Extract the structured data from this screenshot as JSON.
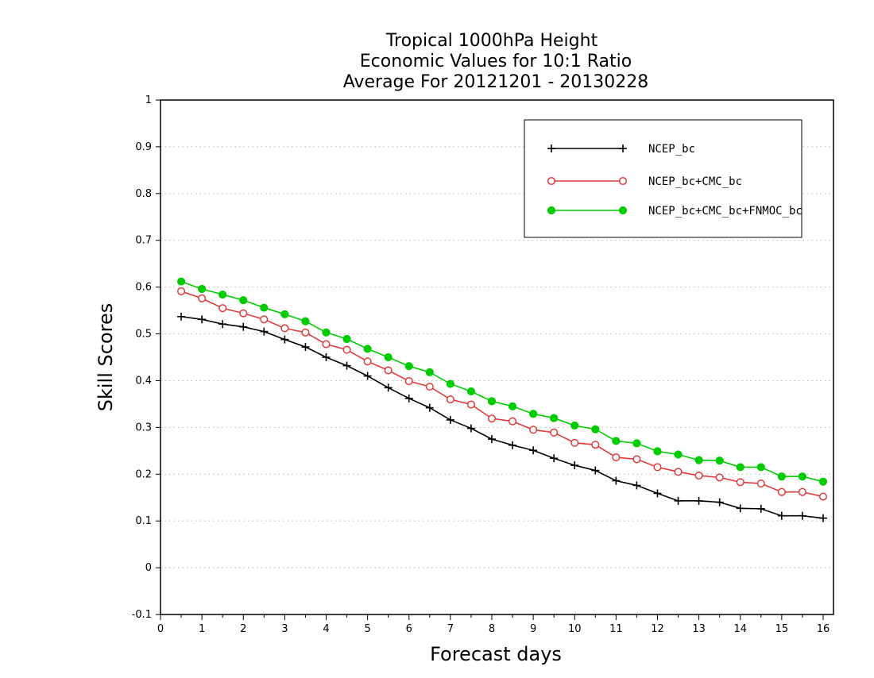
{
  "chart_data": {
    "type": "line",
    "title": [
      "Tropical 1000hPa Height",
      "Economic Values for 10:1 Ratio",
      "Average For 20121201 - 20130228"
    ],
    "xlabel": "Forecast days",
    "ylabel": "Skill Scores",
    "xlim": [
      0,
      16.25
    ],
    "ylim": [
      -0.1,
      1
    ],
    "xticks": [
      0,
      1,
      2,
      3,
      4,
      5,
      6,
      7,
      8,
      9,
      10,
      11,
      12,
      13,
      14,
      15,
      16
    ],
    "xtick_labels": [
      "0",
      "1",
      "2",
      "3",
      "4",
      "5",
      "6",
      "7",
      "8",
      "9",
      "10",
      "11",
      "12",
      "13",
      "14",
      "15",
      "16"
    ],
    "yticks": [
      -0.1,
      0,
      0.1,
      0.2,
      0.3,
      0.4,
      0.5,
      0.6,
      0.7,
      0.8,
      0.9,
      1
    ],
    "ytick_labels": [
      "-0.1",
      "0",
      "0.1",
      "0.2",
      "0.3",
      "0.4",
      "0.5",
      "0.6",
      "0.7",
      "0.8",
      "0.9",
      "1"
    ],
    "grid": "horizontal dotted",
    "legend_position": "top-right",
    "x": [
      0.5,
      1,
      1.5,
      2,
      2.5,
      3,
      3.5,
      4,
      4.5,
      5,
      5.5,
      6,
      6.5,
      7,
      7.5,
      8,
      8.5,
      9,
      9.5,
      10,
      10.5,
      11,
      11.5,
      12,
      12.5,
      13,
      13.5,
      14,
      14.5,
      15,
      15.5,
      16
    ],
    "series": [
      {
        "name": "NCEP_bc",
        "color": "#000000",
        "marker": "plus",
        "values": [
          0.537,
          0.531,
          0.521,
          0.515,
          0.505,
          0.488,
          0.472,
          0.45,
          0.432,
          0.41,
          0.385,
          0.362,
          0.342,
          0.316,
          0.298,
          0.275,
          0.262,
          0.251,
          0.234,
          0.219,
          0.208,
          0.186,
          0.176,
          0.159,
          0.143,
          0.143,
          0.14,
          0.127,
          0.126,
          0.111,
          0.111,
          0.106
        ]
      },
      {
        "name": "NCEP_bc+CMC_bc",
        "color": "#e03c3c",
        "marker": "open-circle",
        "values": [
          0.591,
          0.576,
          0.555,
          0.544,
          0.531,
          0.512,
          0.503,
          0.478,
          0.466,
          0.441,
          0.422,
          0.399,
          0.387,
          0.36,
          0.349,
          0.319,
          0.313,
          0.295,
          0.289,
          0.267,
          0.263,
          0.236,
          0.232,
          0.215,
          0.205,
          0.197,
          0.193,
          0.183,
          0.18,
          0.162,
          0.162,
          0.152
        ]
      },
      {
        "name": "NCEP_bc+CMC_bc+FNMOC_bc",
        "color": "#00cc00",
        "marker": "filled-circle",
        "values": [
          0.612,
          0.596,
          0.584,
          0.572,
          0.556,
          0.542,
          0.527,
          0.503,
          0.489,
          0.468,
          0.45,
          0.431,
          0.418,
          0.393,
          0.377,
          0.356,
          0.345,
          0.329,
          0.32,
          0.304,
          0.296,
          0.271,
          0.266,
          0.249,
          0.242,
          0.23,
          0.229,
          0.215,
          0.215,
          0.195,
          0.195,
          0.184
        ]
      }
    ]
  }
}
